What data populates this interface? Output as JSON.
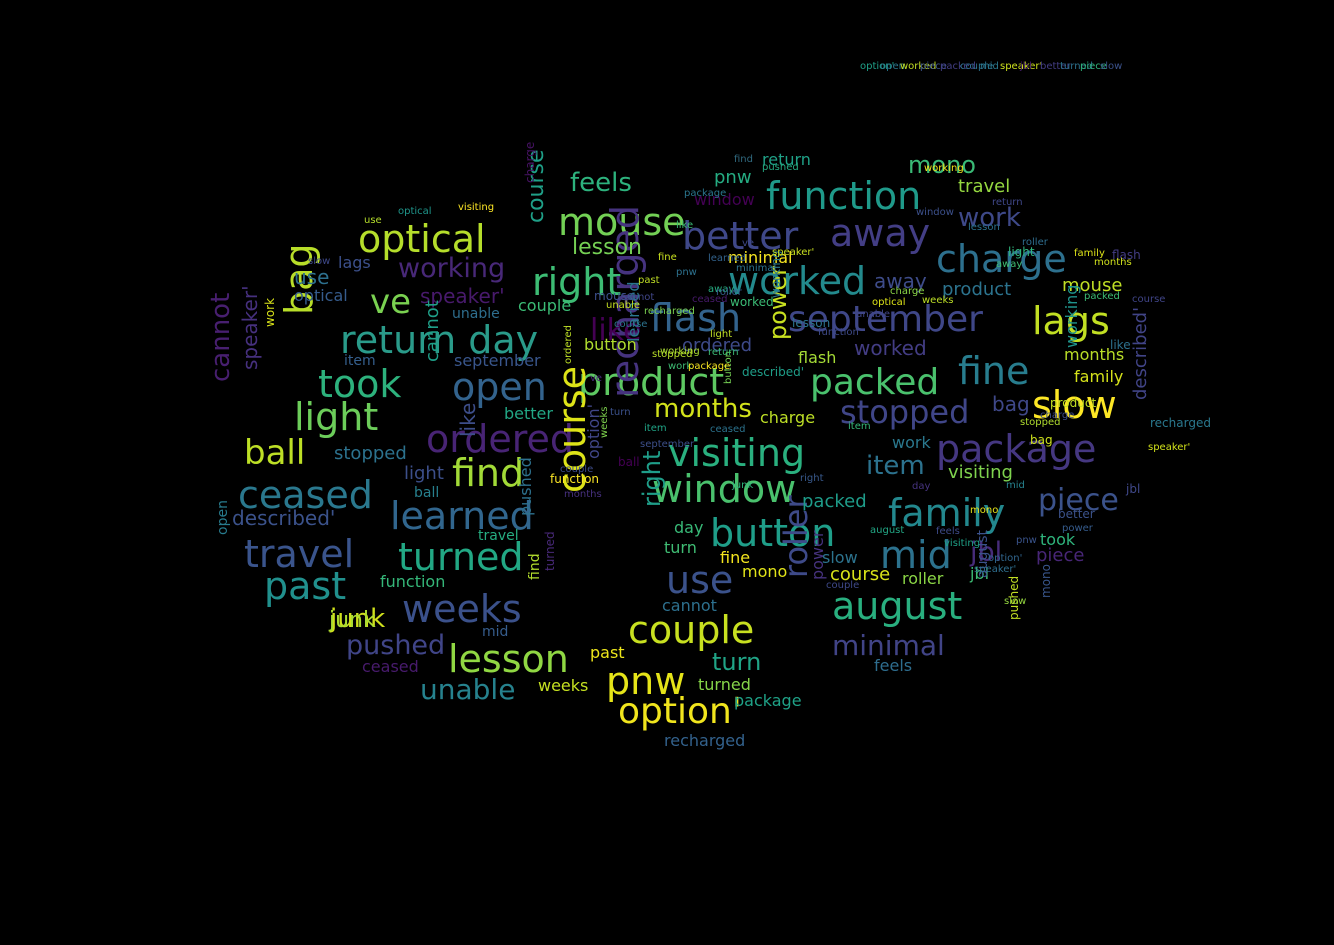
{
  "word_cloud": {
    "background": "#000000",
    "words": [
      {
        "text": "return day",
        "color": "#2a9b8a"
      },
      {
        "text": "optical",
        "color": "#b5de2b"
      },
      {
        "text": "function",
        "color": "#1f9a8a"
      },
      {
        "text": "mouse",
        "color": "#73d055"
      },
      {
        "text": "better",
        "color": "#3f4889"
      },
      {
        "text": "away",
        "color": "#433e85"
      },
      {
        "text": "charge",
        "color": "#2d708e"
      },
      {
        "text": "right",
        "color": "#3dbc74"
      },
      {
        "text": "worked",
        "color": "#238a8d"
      },
      {
        "text": "flash",
        "color": "#33638d"
      },
      {
        "text": "september",
        "color": "#3f4788"
      },
      {
        "text": "lags",
        "color": "#c2df23"
      },
      {
        "text": "working",
        "color": "#482878"
      },
      {
        "text": "ve",
        "color": "#7ad151"
      },
      {
        "text": "bag",
        "color": "#b8de29"
      },
      {
        "text": "took",
        "color": "#2db27d"
      },
      {
        "text": "open",
        "color": "#33638d"
      },
      {
        "text": "product",
        "color": "#5ec962"
      },
      {
        "text": "packed",
        "color": "#4ac16d"
      },
      {
        "text": "fine",
        "color": "#287d8e"
      },
      {
        "text": "light",
        "color": "#6ccd5a"
      },
      {
        "text": "ordered",
        "color": "#482475"
      },
      {
        "text": "recharged",
        "color": "#46337f"
      },
      {
        "text": "visiting",
        "color": "#2ab07f"
      },
      {
        "text": "package",
        "color": "#453781"
      },
      {
        "text": "slow",
        "color": "#fde725"
      },
      {
        "text": "ball",
        "color": "#bddf26"
      },
      {
        "text": "find",
        "color": "#a2da37"
      },
      {
        "text": "stopped",
        "color": "#404688"
      },
      {
        "text": "ceased",
        "color": "#2a788e"
      },
      {
        "text": "course",
        "color": "#dde318"
      },
      {
        "text": "window",
        "color": "#4ac16d"
      },
      {
        "text": "learned",
        "color": "#31668e"
      },
      {
        "text": "family",
        "color": "#23888e"
      },
      {
        "text": "piece",
        "color": "#3b528b"
      },
      {
        "text": "button",
        "color": "#1f9e89"
      },
      {
        "text": "travel",
        "color": "#3a548c"
      },
      {
        "text": "turned",
        "color": "#22a884"
      },
      {
        "text": "mid",
        "color": "#2c728e"
      },
      {
        "text": "jbl",
        "color": "#472c7a"
      },
      {
        "text": "past",
        "color": "#21908d"
      },
      {
        "text": "use",
        "color": "#3b528b"
      },
      {
        "text": "weeks",
        "color": "#3b518b"
      },
      {
        "text": "august",
        "color": "#29af7f"
      },
      {
        "text": "junk",
        "color": "#d0e11c"
      },
      {
        "text": "couple",
        "color": "#c8e020"
      },
      {
        "text": "lesson",
        "color": "#90d743"
      },
      {
        "text": "pushed",
        "color": "#404588"
      },
      {
        "text": "minimal",
        "color": "#414487"
      },
      {
        "text": "unable",
        "color": "#26828e"
      },
      {
        "text": "pnw",
        "color": "#e5e419"
      },
      {
        "text": "option'",
        "color": "#f1e51d"
      },
      {
        "text": "roller",
        "color": "#3e4a89"
      },
      {
        "text": "cannot",
        "color": "#481f70"
      },
      {
        "text": "turn",
        "color": "#20a486"
      },
      {
        "text": "like",
        "color": "#440154"
      },
      {
        "text": "months",
        "color": "#d2e21b"
      },
      {
        "text": "power",
        "color": "#c8e020"
      },
      {
        "text": "feels",
        "color": "#2db27d"
      },
      {
        "text": "mono",
        "color": "#3aba76"
      },
      {
        "text": "work",
        "color": "#3e4989"
      },
      {
        "text": "item",
        "color": "#2c728e"
      },
      {
        "text": "speaker'",
        "color": "#481a6c"
      },
      {
        "text": "described'",
        "color": "#3b528b"
      },
      {
        "text": "lesson",
        "color": "#75d054"
      },
      {
        "text": "feels",
        "color": "#2e6d8e"
      },
      {
        "text": "travel",
        "color": "#95d840"
      },
      {
        "text": "visiting",
        "color": "#7fd34e"
      },
      {
        "text": "return",
        "color": "#1fa187"
      },
      {
        "text": "pnw",
        "color": "#25ac82"
      },
      {
        "text": "function",
        "color": "#35b779"
      },
      {
        "text": "mouse",
        "color": "#c0df25"
      },
      {
        "text": "course",
        "color": "#d8e219"
      },
      {
        "text": "months",
        "color": "#bade28"
      },
      {
        "text": "couple",
        "color": "#3bbb75"
      },
      {
        "text": "button",
        "color": "#b0dd2f"
      },
      {
        "text": "ordered",
        "color": "#3e4a89"
      },
      {
        "text": "stopped",
        "color": "#2c728e"
      },
      {
        "text": "family",
        "color": "#d5e21a"
      },
      {
        "text": "product",
        "color": "#2c738e"
      },
      {
        "text": "travel",
        "color": "#26ad81"
      },
      {
        "text": "minimal",
        "color": "#f8e621"
      },
      {
        "text": "away",
        "color": "#3e4c8a"
      },
      {
        "text": "bag",
        "color": "#3f4889"
      },
      {
        "text": "september",
        "color": "#39568c"
      },
      {
        "text": "window",
        "color": "#440154"
      },
      {
        "text": "worked",
        "color": "#433d84"
      },
      {
        "text": "lags",
        "color": "#3c508b"
      },
      {
        "text": "use",
        "color": "#2d708e"
      },
      {
        "text": "optical",
        "color": "#365c8d"
      },
      {
        "text": "unable",
        "color": "#2e6e8e"
      },
      {
        "text": "item",
        "color": "#355f8d"
      },
      {
        "text": "better",
        "color": "#22a785"
      },
      {
        "text": "flash",
        "color": "#a5db36"
      },
      {
        "text": "piece",
        "color": "#482677"
      },
      {
        "text": "junk",
        "color": "#aadc32"
      },
      {
        "text": "jbl",
        "color": "#3dbc74"
      },
      {
        "text": "took",
        "color": "#2fb47c"
      },
      {
        "text": "fine",
        "color": "#f4e61e"
      },
      {
        "text": "day",
        "color": "#38b977"
      },
      {
        "text": "turn",
        "color": "#3fbc73"
      },
      {
        "text": "slow",
        "color": "#2c738e"
      },
      {
        "text": "packed",
        "color": "#1e9c89"
      },
      {
        "text": "mono",
        "color": "#e2e418"
      },
      {
        "text": "roller",
        "color": "#8bd646"
      },
      {
        "text": "cannot",
        "color": "#2d708e"
      },
      {
        "text": "mid",
        "color": "#365d8d"
      },
      {
        "text": "weeks",
        "color": "#c5e021"
      },
      {
        "text": "turned",
        "color": "#86d549"
      },
      {
        "text": "past",
        "color": "#ece51b"
      },
      {
        "text": "recharged",
        "color": "#33628d"
      },
      {
        "text": "ceased",
        "color": "#481b6d"
      },
      {
        "text": "light",
        "color": "#3c4f8a"
      },
      {
        "text": "ball",
        "color": "#27808e"
      },
      {
        "text": "work",
        "color": "#2a788e"
      },
      {
        "text": "like",
        "color": "#3d4e8a"
      },
      {
        "text": "working",
        "color": "#1f948c"
      },
      {
        "text": "course",
        "color": "#1fa088"
      },
      {
        "text": "charge",
        "color": "#bddf26"
      },
      {
        "text": "speaker'",
        "color": "#46307e"
      },
      {
        "text": "cannot",
        "color": "#1f9f88"
      },
      {
        "text": "open",
        "color": "#287c8e"
      },
      {
        "text": "option'",
        "color": "#404688"
      },
      {
        "text": "pushed",
        "color": "#2d718e"
      },
      {
        "text": "right",
        "color": "#1f9e89"
      },
      {
        "text": "package",
        "color": "#1fa287"
      },
      {
        "text": "find",
        "color": "#b2dd2d"
      },
      {
        "text": "learned",
        "color": "#2a768e"
      },
      {
        "text": "power",
        "color": "#46327e"
      },
      {
        "text": "described'",
        "color": "#414487"
      },
      {
        "text": "august",
        "color": "#3b528b"
      },
      {
        "text": "working",
        "color": "#2a788e"
      },
      {
        "text": "pushed",
        "color": "#c2df23"
      },
      {
        "text": "charge",
        "color": "#471365"
      },
      {
        "text": "visiting",
        "color": "#fde725"
      },
      {
        "text": "slow",
        "color": "#3e4989"
      },
      {
        "text": "use",
        "color": "#b5de2b"
      },
      {
        "text": "optical",
        "color": "#1f968b"
      },
      {
        "text": "family",
        "color": "#dde318"
      },
      {
        "text": "working",
        "color": "#f1e51d"
      },
      {
        "text": "turned",
        "color": "#482979"
      },
      {
        "text": "mono",
        "color": "#39568c"
      },
      {
        "text": "right",
        "color": "#38598c"
      },
      {
        "text": "work",
        "color": "#d8e219"
      },
      {
        "text": "find",
        "color": "#30697f"
      },
      {
        "text": "return",
        "color": "#3f4788"
      },
      {
        "text": "fine",
        "color": "#c8e020"
      },
      {
        "text": "window",
        "color": "#3c508b"
      },
      {
        "text": "like",
        "color": "#3bbb75"
      },
      {
        "text": "learned",
        "color": "#33638d"
      },
      {
        "text": "minimal",
        "color": "#2c728e"
      },
      {
        "text": "package",
        "color": "#2a768e"
      },
      {
        "text": "pushed",
        "color": "#25ab82"
      },
      {
        "text": "cannot",
        "color": "#404688"
      },
      {
        "text": "past",
        "color": "#c0df25"
      },
      {
        "text": "lesson",
        "color": "#2c728e"
      },
      {
        "text": "light",
        "color": "#2fb47c"
      },
      {
        "text": "away",
        "color": "#3fbc73"
      },
      {
        "text": "roller",
        "color": "#2e6d8e"
      },
      {
        "text": "flash",
        "color": "#433d84"
      },
      {
        "text": "months",
        "color": "#d0e11c"
      },
      {
        "text": "packed",
        "color": "#3dbc74"
      },
      {
        "text": "course",
        "color": "#404588"
      },
      {
        "text": "like",
        "color": "#2d708e"
      },
      {
        "text": "recharged",
        "color": "#2a788e"
      },
      {
        "text": "speaker'",
        "color": "#d2e21b"
      },
      {
        "text": "product",
        "color": "#c2df23"
      },
      {
        "text": "stopped",
        "color": "#b0dd2f"
      },
      {
        "text": "charge",
        "color": "#3e4c8a"
      },
      {
        "text": "mid",
        "color": "#26828e"
      },
      {
        "text": "better",
        "color": "#3b528b"
      },
      {
        "text": "power",
        "color": "#365c8d"
      },
      {
        "text": "jbl",
        "color": "#3f4889"
      },
      {
        "text": "item",
        "color": "#35b779"
      },
      {
        "text": "bag",
        "color": "#cde11d"
      },
      {
        "text": "day",
        "color": "#46337f"
      },
      {
        "text": "august",
        "color": "#22a785"
      },
      {
        "text": "couple",
        "color": "#3e4989"
      },
      {
        "text": "visiting",
        "color": "#1fa187"
      },
      {
        "text": "speaker'",
        "color": "#2e6e8e"
      },
      {
        "text": "option'",
        "color": "#31668e"
      },
      {
        "text": "pnw",
        "color": "#3a548c"
      },
      {
        "text": "mono",
        "color": "#e5e419"
      },
      {
        "text": "feels",
        "color": "#3e4a89"
      },
      {
        "text": "slow",
        "color": "#95d840"
      },
      {
        "text": "ceased",
        "color": "#2c738e"
      },
      {
        "text": "button",
        "color": "#75d054"
      },
      {
        "text": "junk",
        "color": "#2fb47c"
      },
      {
        "text": "item",
        "color": "#20a486"
      },
      {
        "text": "weeks",
        "color": "#7fd34e"
      },
      {
        "text": "ball",
        "color": "#440154"
      },
      {
        "text": "ordered",
        "color": "#bddf26"
      },
      {
        "text": "stopped",
        "color": "#b8de29"
      },
      {
        "text": "work",
        "color": "#3dbc74"
      },
      {
        "text": "turn",
        "color": "#3b518b"
      },
      {
        "text": "ve",
        "color": "#482878"
      },
      {
        "text": "september",
        "color": "#3c4f8a"
      },
      {
        "text": "function",
        "color": "#fde725"
      },
      {
        "text": "months",
        "color": "#46307e"
      },
      {
        "text": "couple",
        "color": "#3e4c8a"
      },
      {
        "text": "light",
        "color": "#c0df25"
      },
      {
        "text": "package",
        "color": "#f8e621"
      },
      {
        "text": "return",
        "color": "#3aba76"
      },
      {
        "text": "described'",
        "color": "#1f9e89"
      },
      {
        "text": "recharged",
        "color": "#7ad151"
      },
      {
        "text": "mouse",
        "color": "#3c508b"
      },
      {
        "text": "unable",
        "color": "#c5e021"
      },
      {
        "text": "course",
        "color": "#2c738e"
      },
      {
        "text": "pnw",
        "color": "#2d718e"
      },
      {
        "text": "speaker'",
        "color": "#c8e020"
      },
      {
        "text": "ve",
        "color": "#3e4989"
      },
      {
        "text": "away",
        "color": "#26ad81"
      },
      {
        "text": "ceased",
        "color": "#481a6c"
      },
      {
        "text": "working",
        "color": "#aadc32"
      },
      {
        "text": "roller",
        "color": "#365d8d"
      },
      {
        "text": "lesson",
        "color": "#2c728e"
      },
      {
        "text": "function",
        "color": "#3e4a89"
      },
      {
        "text": "worked",
        "color": "#3bbb75"
      },
      {
        "text": "unable",
        "color": "#404688"
      },
      {
        "text": "optical",
        "color": "#dde318"
      },
      {
        "text": "weeks",
        "color": "#bddf26"
      },
      {
        "text": "charge",
        "color": "#8bd646"
      },
      {
        "text": "option'",
        "color": "#1fa088"
      },
      {
        "text": "open",
        "color": "#2a788e"
      },
      {
        "text": "worked",
        "color": "#c2df23"
      },
      {
        "text": "piece",
        "color": "#3b528b"
      },
      {
        "text": "packed",
        "color": "#433e85"
      },
      {
        "text": "couple",
        "color": "#2d708e"
      },
      {
        "text": "mid",
        "color": "#2a788e"
      },
      {
        "text": "speaker'",
        "color": "#cde11d"
      },
      {
        "text": "jbl",
        "color": "#481f70"
      },
      {
        "text": "better",
        "color": "#433d84"
      },
      {
        "text": "turned",
        "color": "#2c728e"
      },
      {
        "text": "piece",
        "color": "#2fb47c"
      },
      {
        "text": "slow",
        "color": "#3b528b"
      }
    ]
  }
}
